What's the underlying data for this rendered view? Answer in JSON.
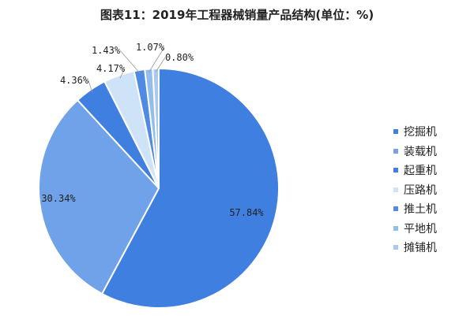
{
  "chart_data": {
    "type": "pie",
    "title": "图表11：2019年工程器械销量产品结构(单位：%)",
    "categories": [
      "挖掘机",
      "装载机",
      "起重机",
      "压路机",
      "推土机",
      "平地机",
      "摊铺机"
    ],
    "values": [
      57.84,
      30.34,
      4.36,
      4.17,
      1.43,
      1.07,
      0.8
    ],
    "data_labels": [
      "57.84%",
      "30.34%",
      "4.36%",
      "4.17%",
      "1.43%",
      "1.07%",
      "0.80%"
    ],
    "colors": [
      "#3F7FE0",
      "#6FA2E8",
      "#3F7FE0",
      "#CFE3F8",
      "#4F8BE3",
      "#93BDEE",
      "#A9C9F0"
    ],
    "legend_position": "right"
  }
}
